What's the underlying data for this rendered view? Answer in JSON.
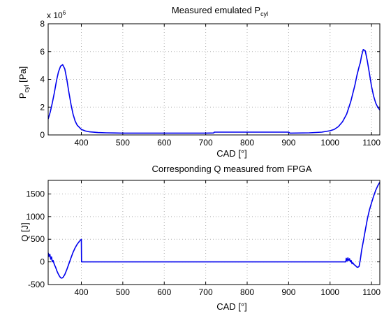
{
  "figure": {
    "background": "#ffffff",
    "line_color": "#0000ee",
    "grid_color": "#b0b0b0"
  },
  "chart_data": [
    {
      "type": "line",
      "title": "Measured emulated P",
      "title_subscript": "cyl",
      "xlabel": "CAD [°]",
      "ylabel": "P",
      "ylabel_subscript": "cyl",
      "ylabel_unit": " [Pa]",
      "exponent_prefix": "x 10",
      "exponent_power": "6",
      "grid": true,
      "xlim": [
        320,
        1120
      ],
      "ylim": [
        0,
        8
      ],
      "xticks": [
        400,
        500,
        600,
        700,
        800,
        900,
        1000,
        1100
      ],
      "yticks": [
        0,
        2,
        4,
        6,
        8
      ],
      "series": [
        {
          "x": [
            320,
            325,
            330,
            335,
            340,
            345,
            350,
            355,
            360,
            365,
            370,
            375,
            380,
            385,
            390,
            400,
            410,
            420,
            440,
            460,
            480,
            500,
            550,
            600,
            650,
            700,
            719,
            721,
            750,
            800,
            850,
            900,
            903,
            950,
            980,
            1000,
            1010,
            1020,
            1030,
            1040,
            1050,
            1060,
            1065,
            1070,
            1073,
            1076,
            1080,
            1085,
            1090,
            1095,
            1100,
            1105,
            1110,
            1115,
            1120
          ],
          "y": [
            1.15,
            1.65,
            2.3,
            3.05,
            3.9,
            4.55,
            4.95,
            5.05,
            4.75,
            4.0,
            3.05,
            2.2,
            1.5,
            1.0,
            0.7,
            0.4,
            0.28,
            0.22,
            0.17,
            0.15,
            0.14,
            0.13,
            0.13,
            0.13,
            0.13,
            0.13,
            0.14,
            0.2,
            0.2,
            0.2,
            0.2,
            0.2,
            0.13,
            0.15,
            0.2,
            0.3,
            0.4,
            0.6,
            0.95,
            1.5,
            2.4,
            3.6,
            4.3,
            4.9,
            5.2,
            5.7,
            6.15,
            6.05,
            5.3,
            4.4,
            3.5,
            2.8,
            2.3,
            2.0,
            1.8
          ]
        }
      ]
    },
    {
      "type": "line",
      "title": "Corresponding Q measured from FPGA",
      "xlabel": "CAD [°]",
      "ylabel": "Q [J]",
      "grid": true,
      "xlim": [
        320,
        1120
      ],
      "ylim": [
        -500,
        1800
      ],
      "xticks": [
        400,
        500,
        600,
        700,
        800,
        900,
        1000,
        1100
      ],
      "yticks": [
        -500,
        0,
        500,
        1000,
        1500
      ],
      "series": [
        {
          "x": [
            320,
            322,
            324,
            326,
            328,
            330,
            332,
            335,
            338,
            341,
            344,
            347,
            350,
            353,
            356,
            360,
            365,
            370,
            375,
            380,
            385,
            390,
            395,
            398,
            400,
            400.5,
            450,
            500,
            600,
            700,
            800,
            900,
            1000,
            1038,
            1039,
            1041,
            1043,
            1045,
            1047,
            1049,
            1051,
            1053,
            1055,
            1058,
            1061,
            1064,
            1067,
            1070,
            1073,
            1076,
            1080,
            1085,
            1090,
            1095,
            1100,
            1105,
            1110,
            1115,
            1120
          ],
          "y": [
            200,
            120,
            170,
            60,
            110,
            0,
            30,
            -60,
            -120,
            -200,
            -260,
            -310,
            -350,
            -360,
            -340,
            -280,
            -170,
            -40,
            90,
            210,
            310,
            390,
            450,
            480,
            500,
            0,
            0,
            0,
            0,
            0,
            0,
            0,
            0,
            0,
            80,
            20,
            90,
            30,
            70,
            0,
            30,
            -40,
            -20,
            -60,
            -80,
            -110,
            -120,
            -100,
            50,
            250,
            450,
            700,
            950,
            1150,
            1300,
            1450,
            1580,
            1680,
            1760
          ]
        }
      ]
    }
  ]
}
